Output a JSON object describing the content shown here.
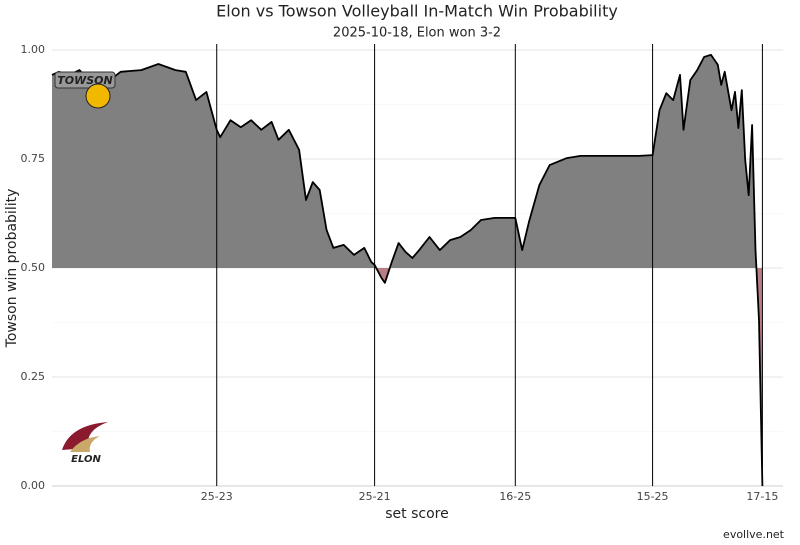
{
  "chart_data": {
    "type": "line",
    "title": "Elon vs Towson Volleyball In-Match Win Probability",
    "subtitle": "2025-10-18, Elon won 3-2",
    "xlabel": "set score",
    "ylabel": "Towson win probability",
    "caption": "evollve.net",
    "logos": [
      "TOWSON",
      "ELON"
    ],
    "x": [
      0,
      2,
      5,
      8,
      12,
      14,
      20,
      26,
      31,
      36,
      39,
      42,
      45,
      46,
      48,
      49,
      52,
      55,
      58,
      61,
      64,
      66,
      69,
      72,
      74,
      76,
      78,
      80,
      82,
      85,
      88,
      91,
      93,
      94,
      96,
      97,
      99,
      101,
      103,
      105,
      107,
      110,
      113,
      116,
      119,
      122,
      125,
      129,
      132,
      135,
      137,
      139,
      142,
      145,
      150,
      154,
      160,
      166,
      171,
      175,
      177,
      179,
      181,
      183,
      184,
      186,
      188,
      190,
      192,
      194,
      195,
      196,
      198,
      199,
      200,
      201,
      202,
      203,
      204,
      205,
      206,
      207
    ],
    "values": [
      0.943,
      0.95,
      0.943,
      0.954,
      0.92,
      0.913,
      0.95,
      0.954,
      0.968,
      0.954,
      0.95,
      0.885,
      0.904,
      0.874,
      0.817,
      0.8,
      0.839,
      0.823,
      0.839,
      0.817,
      0.835,
      0.794,
      0.817,
      0.771,
      0.656,
      0.697,
      0.679,
      0.587,
      0.546,
      0.553,
      0.53,
      0.546,
      0.514,
      0.507,
      0.477,
      0.466,
      0.514,
      0.557,
      0.537,
      0.523,
      0.541,
      0.571,
      0.541,
      0.564,
      0.571,
      0.587,
      0.61,
      0.615,
      0.615,
      0.615,
      0.541,
      0.606,
      0.69,
      0.736,
      0.752,
      0.757,
      0.757,
      0.757,
      0.757,
      0.759,
      0.862,
      0.901,
      0.885,
      0.943,
      0.817,
      0.931,
      0.954,
      0.984,
      0.989,
      0.966,
      0.92,
      0.95,
      0.862,
      0.904,
      0.821,
      0.908,
      0.748,
      0.667,
      0.828,
      0.541,
      0.381,
      0
    ],
    "baseline": 0.5,
    "line_color": "#000000",
    "fill_above": "#808080",
    "fill_below": "#a3535f",
    "xlim": [
      0,
      213
    ],
    "ylim": [
      0,
      1
    ],
    "xticks": [
      {
        "value": 48,
        "label": "25-23"
      },
      {
        "value": 94,
        "label": "25-21"
      },
      {
        "value": 135,
        "label": "16-25"
      },
      {
        "value": 175,
        "label": "15-25"
      },
      {
        "value": 207,
        "label": "17-15"
      }
    ],
    "yticks": [
      {
        "value": 0,
        "label": "0.00"
      },
      {
        "value": 0.25,
        "label": "0.25"
      },
      {
        "value": 0.5,
        "label": "0.50"
      },
      {
        "value": 0.75,
        "label": "0.75"
      },
      {
        "value": 1,
        "label": "1.00"
      }
    ],
    "grid": true
  }
}
